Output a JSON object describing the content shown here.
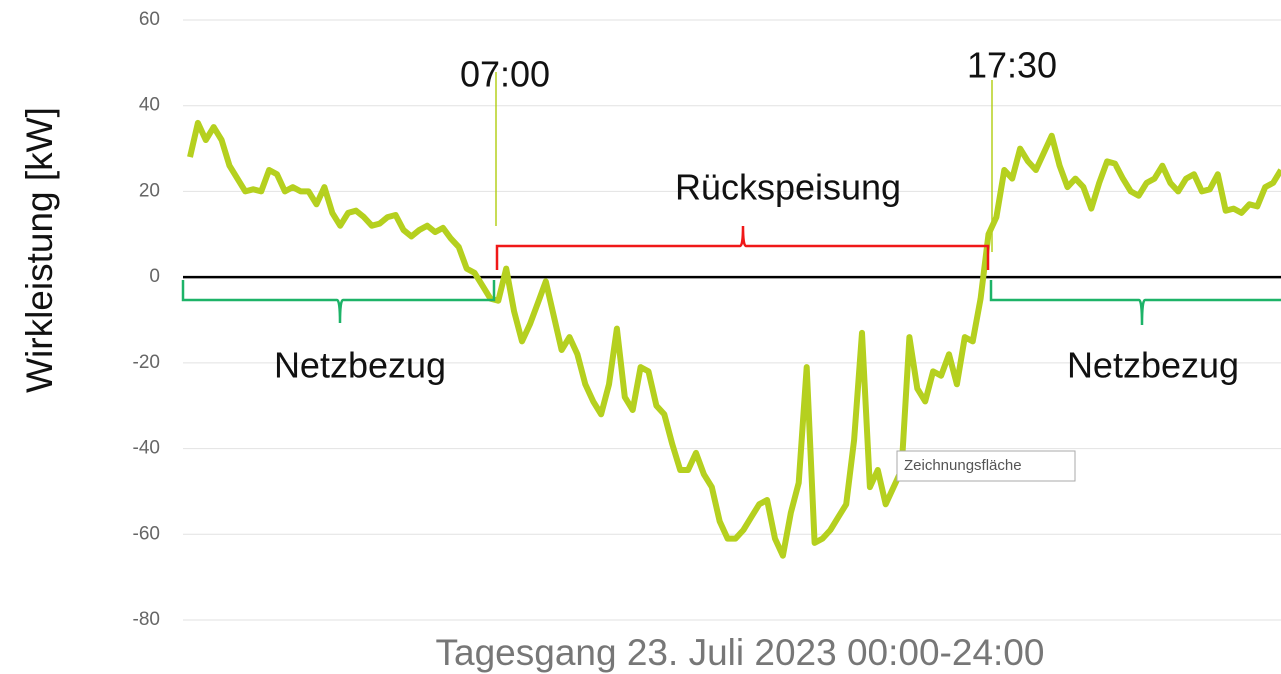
{
  "chart_data": {
    "type": "line",
    "title": "Tagesgang 23. Juli 2023 00:00-24:00",
    "y_label": "Wirkleistung [kW]",
    "ylim": [
      -80,
      60
    ],
    "yticks": [
      -80,
      -60,
      -40,
      -20,
      0,
      20,
      40,
      60
    ],
    "grid": true,
    "series": [
      {
        "color": "#b5d01f",
        "values": [
          28,
          36,
          32,
          35,
          32,
          26,
          23,
          20,
          20.5,
          20,
          25,
          24,
          20,
          21,
          20,
          20,
          17,
          21,
          15,
          12,
          15,
          15.5,
          14,
          12,
          12.5,
          14,
          14.5,
          11,
          9.5,
          11,
          12,
          10.5,
          11.5,
          9,
          7,
          2,
          1,
          -2,
          -5,
          -5.5,
          2,
          -8,
          -15,
          -11,
          -6,
          -1,
          -9,
          -17,
          -14,
          -18,
          -25,
          -29,
          -32,
          -25,
          -12,
          -28,
          -31,
          -21,
          -22,
          -30,
          -32,
          -39,
          -45,
          -45,
          -41,
          -46,
          -49,
          -57,
          -61,
          -61,
          -59,
          -56,
          -53,
          -52,
          -61,
          -65,
          -55,
          -48,
          -21,
          -62,
          -61,
          -59,
          -56,
          -53,
          -38,
          -13,
          -49,
          -45,
          -53,
          -49,
          -45,
          -14,
          -26,
          -29,
          -22,
          -23,
          -18,
          -25,
          -14,
          -15,
          -5,
          10,
          14,
          25,
          23,
          30,
          27,
          25,
          29,
          33,
          26,
          21,
          23,
          21,
          16,
          22,
          27,
          26.5,
          23,
          20,
          19,
          22,
          23,
          26,
          22,
          20,
          23,
          24,
          20,
          20.5,
          24,
          15.5,
          16,
          15,
          17,
          16.5,
          21,
          22,
          25
        ]
      }
    ],
    "annotations": {
      "start": "07:00",
      "end": "17:30",
      "feed_in": "Rückspeisung",
      "draw_left": "Netzbezug",
      "draw_right": "Netzbezug"
    },
    "tooltip": "Zeichnungsfläche"
  }
}
